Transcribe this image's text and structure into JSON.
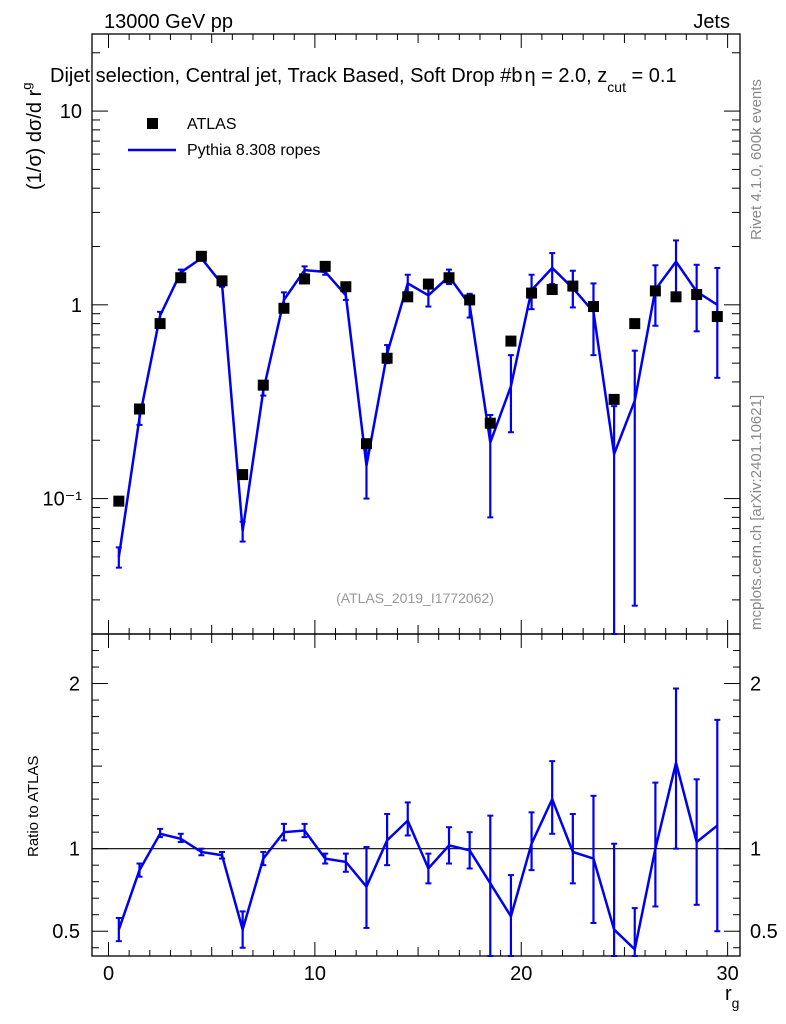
{
  "header": {
    "left": "13000 GeV pp",
    "right": "Jets",
    "selection": "Dijet selection, Central jet, Track Based, Soft Drop #b",
    "selection_params": "η = 2.0, z",
    "selection_sub": "cut",
    "selection_end": " = 0.1"
  },
  "side_labels": {
    "rivet": "Rivet 4.1.0,  600k events",
    "mcplots": "mcplots.cern.ch [arXiv:2401.10621]"
  },
  "watermark": "(ATLAS_2019_I1772062)",
  "colors": {
    "mc": "#0000ee",
    "data": "#000000"
  },
  "chart_data": [
    {
      "type": "scatter",
      "panel": "main",
      "ylabel": "(1/σ) dσ/d r",
      "ylabel_sub": "g",
      "yscale": "log",
      "ylim": [
        0.02,
        25
      ],
      "xlim": [
        -0.8,
        30.6
      ],
      "y_ticks": [
        {
          "value": 10,
          "label": "10"
        },
        {
          "value": 1,
          "label": "1"
        },
        {
          "value": 0.1,
          "label": "10⁻¹"
        }
      ],
      "legend": {
        "position": "top-left",
        "data_label": "ATLAS",
        "mc_label": "Pythia 8.308 ropes"
      },
      "x": [
        0.5,
        1.5,
        2.5,
        3.5,
        4.5,
        5.5,
        6.5,
        7.5,
        8.5,
        9.5,
        10.5,
        11.5,
        12.5,
        13.5,
        14.5,
        15.5,
        16.5,
        17.5,
        18.5,
        19.5,
        20.5,
        21.5,
        22.5,
        23.5,
        24.5,
        25.5,
        26.5,
        27.5,
        28.5,
        29.5
      ],
      "series": [
        {
          "name": "ATLAS",
          "values": [
            0.097,
            0.29,
            0.8,
            1.38,
            1.78,
            1.33,
            0.133,
            0.385,
            0.96,
            1.36,
            1.58,
            1.24,
            0.192,
            0.53,
            1.1,
            1.28,
            1.38,
            1.06,
            0.245,
            0.65,
            1.15,
            1.2,
            1.25,
            0.98,
            0.325,
            0.8,
            1.18,
            1.1,
            1.13,
            0.87
          ]
        },
        {
          "name": "Pythia 8.308 ropes",
          "values": [
            0.05,
            0.26,
            0.88,
            1.47,
            1.74,
            1.28,
            0.068,
            0.36,
            1.06,
            1.51,
            1.48,
            1.12,
            0.148,
            0.56,
            1.29,
            1.12,
            1.4,
            1.0,
            0.195,
            0.38,
            1.19,
            1.55,
            1.22,
            0.92,
            0.17,
            0.32,
            1.2,
            1.67,
            1.17,
            1.0
          ],
          "err_low": [
            0.044,
            0.24,
            0.84,
            1.42,
            1.7,
            1.24,
            0.06,
            0.34,
            0.96,
            1.44,
            1.43,
            1.06,
            0.1,
            0.5,
            1.15,
            0.98,
            1.28,
            0.86,
            0.08,
            0.22,
            0.95,
            1.28,
            0.97,
            0.55,
            0.001,
            0.028,
            0.78,
            1.1,
            0.73,
            0.42
          ],
          "err_high": [
            0.056,
            0.28,
            0.92,
            1.52,
            1.78,
            1.32,
            0.076,
            0.38,
            1.16,
            1.58,
            1.53,
            1.18,
            0.19,
            0.62,
            1.43,
            1.26,
            1.52,
            1.14,
            0.27,
            0.55,
            1.43,
            1.85,
            1.5,
            1.29,
            0.3,
            0.58,
            1.6,
            2.15,
            1.61,
            1.55
          ]
        }
      ]
    },
    {
      "type": "line",
      "panel": "ratio",
      "ylabel": "Ratio to ATLAS",
      "xlabel": "r",
      "xlabel_sub": "g",
      "ylim": [
        0.35,
        2.3
      ],
      "xlim": [
        -0.8,
        30.6
      ],
      "reference": 1,
      "y_ticks": [
        {
          "value": 2,
          "label": "2"
        },
        {
          "value": 1,
          "label": "1"
        },
        {
          "value": 0.5,
          "label": "0.5"
        }
      ],
      "x_ticks": [
        {
          "value": 0,
          "label": "0"
        },
        {
          "value": 10,
          "label": "10"
        },
        {
          "value": 20,
          "label": "20"
        },
        {
          "value": 30,
          "label": "30"
        }
      ],
      "x": [
        0.5,
        1.5,
        2.5,
        3.5,
        4.5,
        5.5,
        6.5,
        7.5,
        8.5,
        9.5,
        10.5,
        11.5,
        12.5,
        13.5,
        14.5,
        15.5,
        16.5,
        17.5,
        18.5,
        19.5,
        20.5,
        21.5,
        22.5,
        23.5,
        24.5,
        25.5,
        26.5,
        27.5,
        28.5,
        29.5
      ],
      "series": [
        {
          "name": "Pythia 8.308 ropes / ATLAS",
          "values": [
            0.51,
            0.87,
            1.09,
            1.06,
            0.98,
            0.96,
            0.51,
            0.94,
            1.1,
            1.11,
            0.94,
            0.92,
            0.77,
            1.05,
            1.17,
            0.88,
            1.02,
            0.99,
            0.79,
            0.59,
            1.03,
            1.3,
            0.98,
            0.94,
            0.51,
            0.39,
            1.0,
            1.52,
            1.04,
            1.14
          ],
          "err_low": [
            0.44,
            0.83,
            1.07,
            1.04,
            0.96,
            0.94,
            0.4,
            0.9,
            1.05,
            1.07,
            0.91,
            0.86,
            0.52,
            0.9,
            1.08,
            0.79,
            0.91,
            0.88,
            0.3,
            0.3,
            0.87,
            1.09,
            0.79,
            0.55,
            0.3,
            0.3,
            0.65,
            1.0,
            0.66,
            0.5
          ],
          "err_high": [
            0.58,
            0.91,
            1.12,
            1.09,
            1.0,
            0.98,
            0.62,
            0.98,
            1.15,
            1.15,
            0.97,
            0.97,
            1.01,
            1.21,
            1.28,
            0.97,
            1.13,
            1.1,
            1.2,
            0.84,
            1.22,
            1.53,
            1.21,
            1.32,
            1.03,
            0.64,
            1.4,
            1.97,
            1.42,
            1.78
          ]
        }
      ]
    }
  ]
}
